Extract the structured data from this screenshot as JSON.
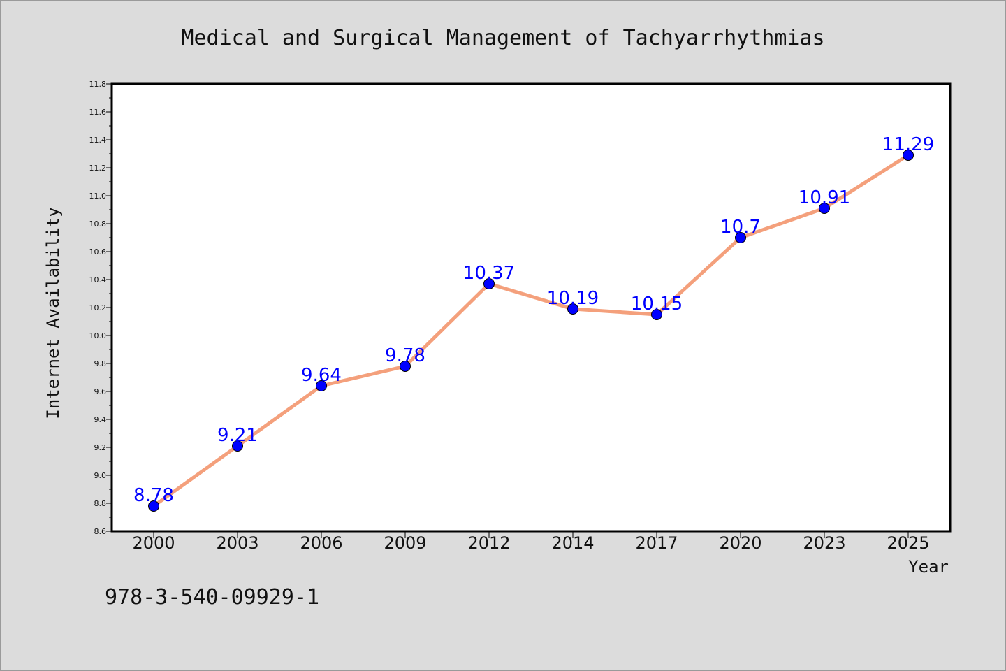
{
  "chart_data": {
    "type": "line",
    "title": "Medical and Surgical Management of Tachyarrhythmias",
    "xlabel": "Year",
    "ylabel": "Internet Availability",
    "categories": [
      "2000",
      "2003",
      "2006",
      "2009",
      "2012",
      "2014",
      "2017",
      "2020",
      "2023",
      "2025"
    ],
    "series": [
      {
        "values": [
          8.78,
          9.21,
          9.64,
          9.78,
          10.37,
          10.19,
          10.15,
          10.7,
          10.91,
          11.29
        ],
        "data_labels": [
          "8.78",
          "9.21",
          "9.64",
          "9.78",
          "10.37",
          "10.19",
          "10.15",
          "10.7",
          "10.91",
          "11.29"
        ]
      }
    ],
    "ylim": [
      8.6,
      11.8
    ],
    "yticks": [
      "8.6",
      "8.8",
      "9.0",
      "9.2",
      "9.4",
      "9.6",
      "9.8",
      "10.0",
      "10.2",
      "10.4",
      "10.6",
      "10.8",
      "11.0",
      "11.2",
      "11.4",
      "11.6",
      "11.8"
    ],
    "grid": false,
    "legend": "none"
  },
  "footer": {
    "isbn": "978-3-540-09929-1"
  },
  "colors": {
    "background": "#dcdcdc",
    "plot_background": "#ffffff",
    "line": "#f4a07c",
    "marker": "#0000ff",
    "data_label": "#0000ff",
    "axis": "#000000"
  }
}
